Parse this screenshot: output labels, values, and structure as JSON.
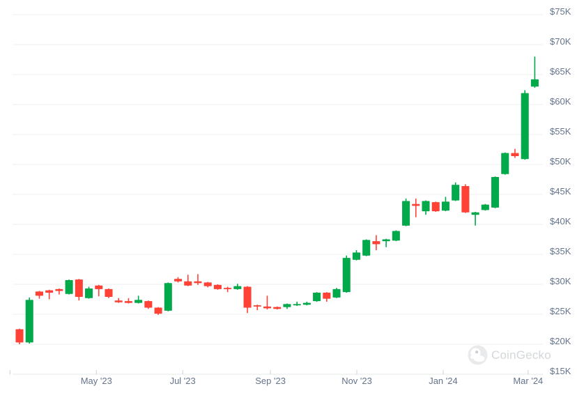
{
  "watermark": {
    "label": "CoinGecko"
  },
  "colors": {
    "up": "#00a94a",
    "down": "#ff4136",
    "grid": "#eef0f1",
    "axis_line": "#e6e8ea",
    "tick": "#cfd4da",
    "axis_text": "#64748b",
    "watermark_gray": "#e9eaec",
    "background": "#ffffff"
  },
  "chart_data": {
    "type": "candlestick",
    "interval": "weekly",
    "unit": "USD",
    "grid": "horizontal-on",
    "legend": "none",
    "y_axis": {
      "side": "right",
      "range_thousands": [
        15,
        75
      ],
      "ticks": [
        {
          "label": "$75K",
          "value": 75
        },
        {
          "label": "$70K",
          "value": 70
        },
        {
          "label": "$65K",
          "value": 65
        },
        {
          "label": "$60K",
          "value": 60
        },
        {
          "label": "$55K",
          "value": 55
        },
        {
          "label": "$50K",
          "value": 50
        },
        {
          "label": "$45K",
          "value": 45
        },
        {
          "label": "$40K",
          "value": 40
        },
        {
          "label": "$35K",
          "value": 35
        },
        {
          "label": "$30K",
          "value": 30
        },
        {
          "label": "$25K",
          "value": 25
        },
        {
          "label": "$20K",
          "value": 20
        },
        {
          "label": "$15K",
          "value": 15
        }
      ]
    },
    "x_axis": {
      "ticks": [
        {
          "label": "",
          "date": "2023-03-01"
        },
        {
          "label": "May '23",
          "date": "2023-05-01"
        },
        {
          "label": "Jul '23",
          "date": "2023-07-01"
        },
        {
          "label": "Sep '23",
          "date": "2023-09-01"
        },
        {
          "label": "Nov '23",
          "date": "2023-11-01"
        },
        {
          "label": "Jan '24",
          "date": "2024-01-01"
        },
        {
          "label": "Mar '24",
          "date": "2024-03-01"
        }
      ]
    },
    "values_in_thousands_usd": true,
    "candles": [
      {
        "date": "2023-03-06",
        "o": 22.5,
        "h": 22.6,
        "l": 20.0,
        "c": 20.3
      },
      {
        "date": "2023-03-13",
        "o": 20.3,
        "h": 27.8,
        "l": 20.1,
        "c": 27.4
      },
      {
        "date": "2023-03-20",
        "o": 28.8,
        "h": 28.9,
        "l": 27.6,
        "c": 28.1
      },
      {
        "date": "2023-03-27",
        "o": 29.0,
        "h": 29.1,
        "l": 27.5,
        "c": 28.6
      },
      {
        "date": "2023-04-03",
        "o": 29.2,
        "h": 29.3,
        "l": 28.3,
        "c": 28.9
      },
      {
        "date": "2023-04-10",
        "o": 28.4,
        "h": 30.8,
        "l": 28.3,
        "c": 30.7
      },
      {
        "date": "2023-04-17",
        "o": 30.8,
        "h": 30.9,
        "l": 27.3,
        "c": 27.9
      },
      {
        "date": "2023-04-24",
        "o": 27.7,
        "h": 29.6,
        "l": 27.6,
        "c": 29.3
      },
      {
        "date": "2023-05-01",
        "o": 29.8,
        "h": 29.9,
        "l": 28.0,
        "c": 29.2
      },
      {
        "date": "2023-05-08",
        "o": 29.2,
        "h": 29.3,
        "l": 27.7,
        "c": 27.9
      },
      {
        "date": "2023-05-15",
        "o": 27.3,
        "h": 27.7,
        "l": 26.9,
        "c": 27.0
      },
      {
        "date": "2023-05-22",
        "o": 27.2,
        "h": 27.7,
        "l": 26.8,
        "c": 26.9
      },
      {
        "date": "2023-05-29",
        "o": 26.9,
        "h": 28.1,
        "l": 26.8,
        "c": 27.4
      },
      {
        "date": "2023-06-05",
        "o": 27.2,
        "h": 27.3,
        "l": 25.9,
        "c": 26.1
      },
      {
        "date": "2023-06-12",
        "o": 26.1,
        "h": 26.2,
        "l": 24.9,
        "c": 25.1
      },
      {
        "date": "2023-06-19",
        "o": 25.6,
        "h": 30.3,
        "l": 25.5,
        "c": 30.2
      },
      {
        "date": "2023-06-26",
        "o": 30.9,
        "h": 31.2,
        "l": 30.3,
        "c": 30.5
      },
      {
        "date": "2023-07-03",
        "o": 30.5,
        "h": 31.6,
        "l": 29.7,
        "c": 29.8
      },
      {
        "date": "2023-07-10",
        "o": 30.5,
        "h": 31.7,
        "l": 29.9,
        "c": 30.2
      },
      {
        "date": "2023-07-17",
        "o": 30.3,
        "h": 30.4,
        "l": 29.5,
        "c": 29.7
      },
      {
        "date": "2023-07-24",
        "o": 29.9,
        "h": 30.0,
        "l": 29.1,
        "c": 29.2
      },
      {
        "date": "2023-07-31",
        "o": 29.4,
        "h": 29.6,
        "l": 28.7,
        "c": 29.2
      },
      {
        "date": "2023-08-07",
        "o": 29.2,
        "h": 30.1,
        "l": 29.1,
        "c": 29.7
      },
      {
        "date": "2023-08-14",
        "o": 29.6,
        "h": 29.7,
        "l": 25.2,
        "c": 26.1
      },
      {
        "date": "2023-08-21",
        "o": 26.5,
        "h": 26.6,
        "l": 25.7,
        "c": 26.3
      },
      {
        "date": "2023-08-28",
        "o": 26.3,
        "h": 28.1,
        "l": 25.8,
        "c": 26.0
      },
      {
        "date": "2023-09-04",
        "o": 26.2,
        "h": 26.3,
        "l": 25.8,
        "c": 25.9
      },
      {
        "date": "2023-09-11",
        "o": 26.2,
        "h": 26.8,
        "l": 25.9,
        "c": 26.7
      },
      {
        "date": "2023-09-18",
        "o": 26.5,
        "h": 27.1,
        "l": 26.4,
        "c": 26.7
      },
      {
        "date": "2023-09-25",
        "o": 26.6,
        "h": 27.1,
        "l": 26.5,
        "c": 26.9
      },
      {
        "date": "2023-10-02",
        "o": 27.2,
        "h": 28.7,
        "l": 27.1,
        "c": 28.6
      },
      {
        "date": "2023-10-09",
        "o": 28.6,
        "h": 28.7,
        "l": 27.1,
        "c": 27.6
      },
      {
        "date": "2023-10-16",
        "o": 27.8,
        "h": 29.4,
        "l": 27.7,
        "c": 29.2
      },
      {
        "date": "2023-10-23",
        "o": 28.7,
        "h": 34.8,
        "l": 28.6,
        "c": 34.4
      },
      {
        "date": "2023-10-30",
        "o": 34.1,
        "h": 35.7,
        "l": 34.0,
        "c": 35.3
      },
      {
        "date": "2023-11-06",
        "o": 34.8,
        "h": 37.5,
        "l": 34.7,
        "c": 37.4
      },
      {
        "date": "2023-11-13",
        "o": 37.2,
        "h": 38.2,
        "l": 35.7,
        "c": 36.7
      },
      {
        "date": "2023-11-20",
        "o": 37.2,
        "h": 37.6,
        "l": 36.2,
        "c": 37.5
      },
      {
        "date": "2023-11-27",
        "o": 37.3,
        "h": 39.0,
        "l": 37.2,
        "c": 38.9
      },
      {
        "date": "2023-12-04",
        "o": 39.8,
        "h": 44.3,
        "l": 39.7,
        "c": 43.9
      },
      {
        "date": "2023-12-11",
        "o": 43.4,
        "h": 44.3,
        "l": 41.2,
        "c": 43.1
      },
      {
        "date": "2023-12-18",
        "o": 42.2,
        "h": 44.0,
        "l": 41.6,
        "c": 43.9
      },
      {
        "date": "2023-12-25",
        "o": 43.7,
        "h": 43.8,
        "l": 42.1,
        "c": 42.2
      },
      {
        "date": "2024-01-01",
        "o": 42.3,
        "h": 44.6,
        "l": 42.2,
        "c": 43.8
      },
      {
        "date": "2024-01-08",
        "o": 44.0,
        "h": 47.0,
        "l": 43.9,
        "c": 46.6
      },
      {
        "date": "2024-01-15",
        "o": 46.4,
        "h": 46.7,
        "l": 41.9,
        "c": 42.0
      },
      {
        "date": "2024-01-22",
        "o": 41.6,
        "h": 42.1,
        "l": 39.8,
        "c": 42.0
      },
      {
        "date": "2024-01-29",
        "o": 42.4,
        "h": 43.4,
        "l": 42.3,
        "c": 43.3
      },
      {
        "date": "2024-02-05",
        "o": 42.8,
        "h": 48.0,
        "l": 42.7,
        "c": 47.9
      },
      {
        "date": "2024-02-12",
        "o": 48.4,
        "h": 52.0,
        "l": 48.3,
        "c": 51.9
      },
      {
        "date": "2024-02-19",
        "o": 51.9,
        "h": 52.6,
        "l": 51.1,
        "c": 51.4
      },
      {
        "date": "2024-02-26",
        "o": 50.9,
        "h": 62.4,
        "l": 50.8,
        "c": 61.9
      },
      {
        "date": "2024-03-04",
        "o": 63.0,
        "h": 68.0,
        "l": 62.8,
        "c": 64.2
      }
    ]
  }
}
